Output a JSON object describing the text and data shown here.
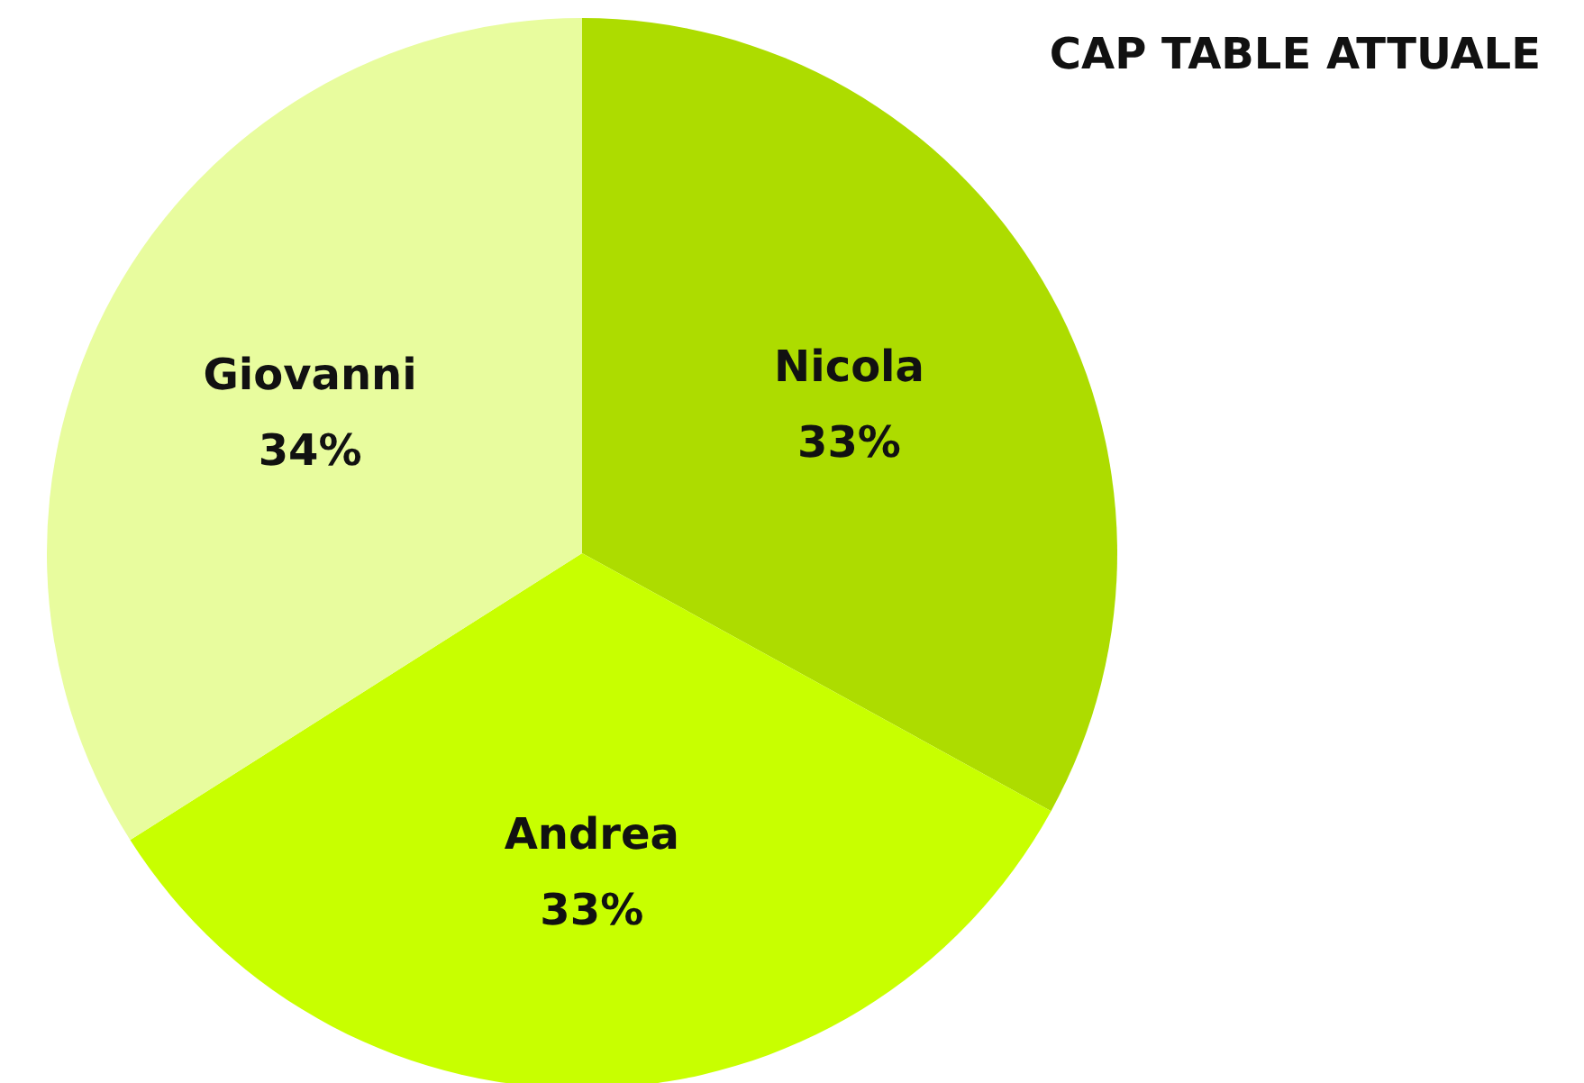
{
  "chart_data": {
    "type": "pie",
    "title": "CAP TABLE ATTUALE",
    "categories": [
      "Nicola",
      "Andrea",
      "Giovanni"
    ],
    "values": [
      33,
      33,
      34
    ],
    "colors": [
      "#addc00",
      "#c8ff00",
      "#e8fc9e"
    ],
    "value_labels": [
      "33%",
      "33%",
      "34%"
    ]
  }
}
